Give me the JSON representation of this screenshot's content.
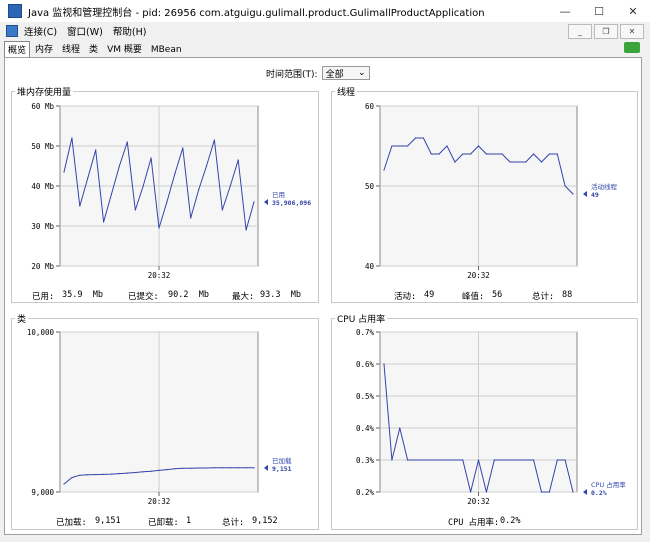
{
  "window": {
    "title": "Java 监视和管理控制台 - pid: 26956 com.atguigu.gulimall.product.GulimallProductApplication",
    "min": "—",
    "max": "☐",
    "close": "✕"
  },
  "menu": {
    "items": [
      "连接(C)",
      "窗口(W)",
      "帮助(H)"
    ]
  },
  "tabs": [
    "概览",
    "内存",
    "线程",
    "类",
    "VM 概要",
    "MBean"
  ],
  "time_range": {
    "label": "时间范围(T):",
    "value": "全部"
  },
  "colors": {
    "series": "#3344aa",
    "grid": "#cfcfcf"
  },
  "panels": {
    "heap": {
      "title": "堆内存使用量",
      "stats": [
        {
          "label": "已用:",
          "value": "35.9  Mb"
        },
        {
          "label": "已提交:",
          "value": "90.2  Mb"
        },
        {
          "label": "最大:",
          "value": "93.3  Mb"
        }
      ]
    },
    "threads": {
      "title": "线程",
      "stats": [
        {
          "label": "活动:",
          "value": "49"
        },
        {
          "label": "峰值:",
          "value": "56"
        },
        {
          "label": "总计:",
          "value": "88"
        }
      ]
    },
    "classes": {
      "title": "类",
      "stats": [
        {
          "label": "已加载:",
          "value": "9,151"
        },
        {
          "label": "已卸载:",
          "value": "1"
        },
        {
          "label": "总计:",
          "value": "9,152"
        }
      ]
    },
    "cpu": {
      "title": "CPU 占用率",
      "stats": [
        {
          "label": "CPU 占用率:",
          "value": "0.2%"
        }
      ]
    }
  },
  "chart_data": [
    {
      "type": "line",
      "name": "heap",
      "yticks": [
        "20 Mb",
        "30 Mb",
        "40 Mb",
        "50 Mb",
        "60 Mb"
      ],
      "ylim": [
        20,
        60
      ],
      "xtick": "20:32",
      "values": [
        43.5,
        52,
        35,
        42,
        49,
        31,
        38,
        45,
        51,
        34,
        40,
        47,
        29.5,
        36,
        43,
        49.5,
        32,
        39,
        45,
        51.5,
        34,
        40,
        46.5,
        29,
        36
      ],
      "legend": {
        "label": "已用",
        "value": "35,906,096"
      }
    },
    {
      "type": "line",
      "name": "threads",
      "yticks": [
        "40",
        "50",
        "60"
      ],
      "ylim": [
        40,
        60
      ],
      "xtick": "20:32",
      "values": [
        52,
        55,
        55,
        55,
        56,
        56,
        54,
        54,
        55,
        53,
        54,
        54,
        55,
        54,
        54,
        54,
        53,
        53,
        53,
        54,
        53,
        54,
        54,
        50,
        49
      ],
      "legend": {
        "label": "活动线程",
        "value": "49"
      }
    },
    {
      "type": "line",
      "name": "classes",
      "yticks": [
        "9,000",
        "10,000"
      ],
      "ylim": [
        9000,
        10000
      ],
      "xtick": "20:32",
      "values": [
        9050,
        9090,
        9105,
        9108,
        9109,
        9110,
        9112,
        9115,
        9118,
        9122,
        9126,
        9130,
        9135,
        9140,
        9145,
        9148,
        9149,
        9150,
        9150,
        9151,
        9151,
        9151,
        9151,
        9151,
        9151
      ],
      "legend": {
        "label": "已加载",
        "value": "9,151"
      }
    },
    {
      "type": "line",
      "name": "cpu",
      "yticks": [
        "0.2%",
        "0.3%",
        "0.4%",
        "0.5%",
        "0.6%",
        "0.7%"
      ],
      "ylim": [
        0.2,
        0.7
      ],
      "xtick": "20:32",
      "values": [
        0.6,
        0.3,
        0.4,
        0.3,
        0.3,
        0.3,
        0.3,
        0.3,
        0.3,
        0.3,
        0.3,
        0.2,
        0.3,
        0.2,
        0.3,
        0.3,
        0.3,
        0.3,
        0.3,
        0.3,
        0.2,
        0.2,
        0.3,
        0.3,
        0.2
      ],
      "legend": {
        "label": "CPU 占用率",
        "value": "0.2%"
      }
    }
  ]
}
